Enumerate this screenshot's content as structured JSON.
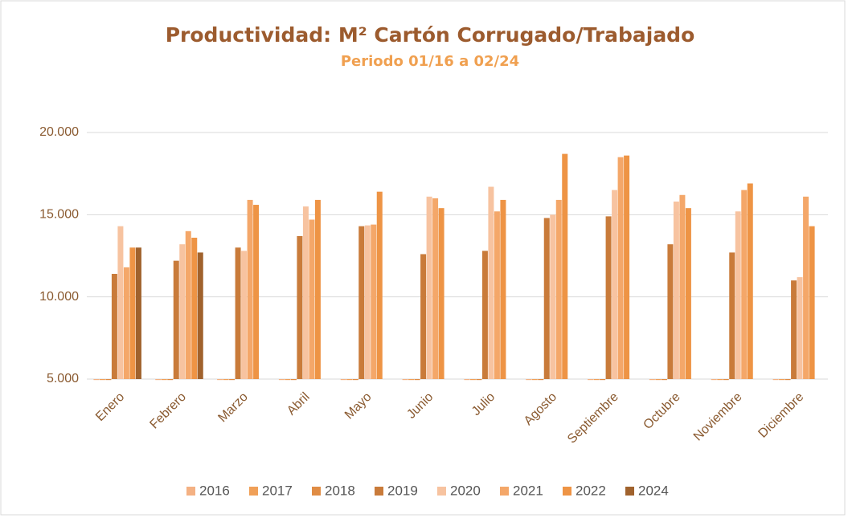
{
  "chart_data": {
    "type": "bar",
    "title": "Productividad: M² Cartón Corrugado/Trabajado",
    "subtitle": "Periodo 01/16 a 02/24",
    "categories": [
      "Enero",
      "Febrero",
      "Marzo",
      "Abril",
      "Mayo",
      "Junio",
      "Julio",
      "Agosto",
      "Septiembre",
      "Octubre",
      "Noviembre",
      "Diciembre"
    ],
    "series": [
      {
        "name": "2016",
        "color": "#f4b183",
        "values": [
          5000,
          5000,
          5000,
          5000,
          5000,
          5000,
          5000,
          5000,
          5000,
          5000,
          5000,
          5000
        ]
      },
      {
        "name": "2017",
        "color": "#f0a058",
        "values": [
          5000,
          5000,
          5000,
          5000,
          5000,
          5000,
          5000,
          5000,
          5000,
          5000,
          5000,
          5000
        ]
      },
      {
        "name": "2018",
        "color": "#e08c44",
        "values": [
          5000,
          5000,
          5000,
          5000,
          5000,
          5000,
          5000,
          5000,
          5000,
          5000,
          5000,
          5000
        ]
      },
      {
        "name": "2019",
        "color": "#c97b3a",
        "values": [
          11400,
          12200,
          13000,
          13700,
          14300,
          12600,
          12800,
          14800,
          14900,
          13200,
          12700,
          11000
        ]
      },
      {
        "name": "2020",
        "color": "#f7c3a0",
        "values": [
          14300,
          13200,
          12800,
          15500,
          14350,
          16100,
          16700,
          15000,
          16500,
          15800,
          15200,
          11200
        ]
      },
      {
        "name": "2021",
        "color": "#f4a769",
        "values": [
          11800,
          14000,
          15900,
          14700,
          14400,
          16000,
          15200,
          15900,
          18500,
          16200,
          16500,
          16100
        ]
      },
      {
        "name": "2022",
        "color": "#ee9445",
        "values": [
          13000,
          13600,
          15600,
          15900,
          16400,
          15400,
          15900,
          18700,
          18600,
          15400,
          16900,
          14300
        ]
      },
      {
        "name": "2024",
        "color": "#a0622d",
        "values": [
          13000,
          12700,
          null,
          null,
          null,
          null,
          null,
          null,
          null,
          null,
          null,
          null
        ]
      }
    ],
    "ylim": [
      5000,
      20000
    ],
    "yticks": [
      {
        "value": 5000,
        "label": "5.000"
      },
      {
        "value": 10000,
        "label": "10.000"
      },
      {
        "value": 15000,
        "label": "15.000"
      },
      {
        "value": 20000,
        "label": "20.000"
      }
    ],
    "grid": true,
    "legend": "bottom"
  }
}
